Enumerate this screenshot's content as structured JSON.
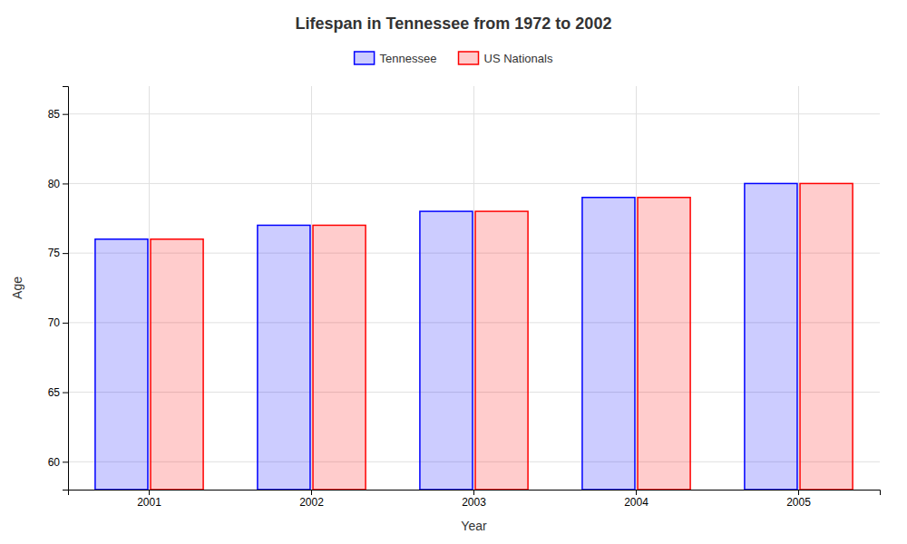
{
  "chart_data": {
    "type": "bar",
    "title": "Lifespan in Tennessee from 1972 to 2002",
    "x_label": "Year",
    "y_label": "Age",
    "categories": [
      "2001",
      "2002",
      "2003",
      "2004",
      "2005"
    ],
    "series": [
      {
        "name": "Tennessee",
        "color": "#0000ff",
        "values": [
          76,
          77,
          78,
          79,
          80
        ]
      },
      {
        "name": "US Nationals",
        "color": "#ff0000",
        "values": [
          76,
          77,
          78,
          79,
          80
        ]
      }
    ],
    "ylim": [
      58,
      87
    ],
    "yticks": [
      60,
      65,
      70,
      75,
      80,
      85
    ],
    "grid": true,
    "legend": "top"
  }
}
